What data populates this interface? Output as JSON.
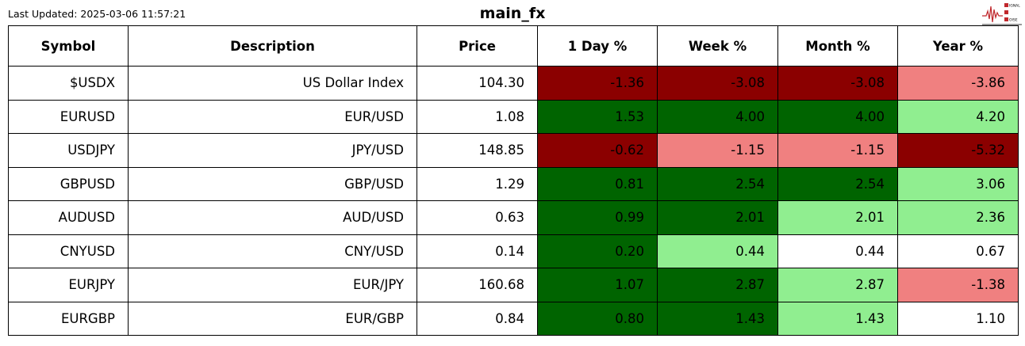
{
  "last_updated": "Last Updated: 2025-03-06 11:57:21",
  "title": "main_fx",
  "logo": {
    "text": "SIGNAL 2 NOISE",
    "color": "#c0282d"
  },
  "colors": {
    "dark_red": "#8b0000",
    "light_red": "#f08080",
    "dark_green": "#006400",
    "light_green": "#90ee90",
    "white": "#ffffff"
  },
  "table": {
    "headers": [
      "Symbol",
      "Description",
      "Price",
      "1 Day %",
      "Week %",
      "Month %",
      "Year %"
    ],
    "rows": [
      {
        "cells": [
          "$USDX",
          "US Dollar Index",
          "104.30",
          "-1.36",
          "-3.08",
          "-3.08",
          "-3.86"
        ],
        "colors": [
          "#8b0000",
          "#8b0000",
          "#8b0000",
          "#f08080"
        ]
      },
      {
        "cells": [
          "EURUSD",
          "EUR/USD",
          "1.08",
          "1.53",
          "4.00",
          "4.00",
          "4.20"
        ],
        "colors": [
          "#006400",
          "#006400",
          "#006400",
          "#90ee90"
        ]
      },
      {
        "cells": [
          "USDJPY",
          "JPY/USD",
          "148.85",
          "-0.62",
          "-1.15",
          "-1.15",
          "-5.32"
        ],
        "colors": [
          "#8b0000",
          "#f08080",
          "#f08080",
          "#8b0000"
        ]
      },
      {
        "cells": [
          "GBPUSD",
          "GBP/USD",
          "1.29",
          "0.81",
          "2.54",
          "2.54",
          "3.06"
        ],
        "colors": [
          "#006400",
          "#006400",
          "#006400",
          "#90ee90"
        ]
      },
      {
        "cells": [
          "AUDUSD",
          "AUD/USD",
          "0.63",
          "0.99",
          "2.01",
          "2.01",
          "2.36"
        ],
        "colors": [
          "#006400",
          "#006400",
          "#90ee90",
          "#90ee90"
        ]
      },
      {
        "cells": [
          "CNYUSD",
          "CNY/USD",
          "0.14",
          "0.20",
          "0.44",
          "0.44",
          "0.67"
        ],
        "colors": [
          "#006400",
          "#90ee90",
          "#ffffff",
          "#ffffff"
        ]
      },
      {
        "cells": [
          "EURJPY",
          "EUR/JPY",
          "160.68",
          "1.07",
          "2.87",
          "2.87",
          "-1.38"
        ],
        "colors": [
          "#006400",
          "#006400",
          "#90ee90",
          "#f08080"
        ]
      },
      {
        "cells": [
          "EURGBP",
          "EUR/GBP",
          "0.84",
          "0.80",
          "1.43",
          "1.43",
          "1.10"
        ],
        "colors": [
          "#006400",
          "#006400",
          "#90ee90",
          "#ffffff"
        ]
      }
    ]
  }
}
